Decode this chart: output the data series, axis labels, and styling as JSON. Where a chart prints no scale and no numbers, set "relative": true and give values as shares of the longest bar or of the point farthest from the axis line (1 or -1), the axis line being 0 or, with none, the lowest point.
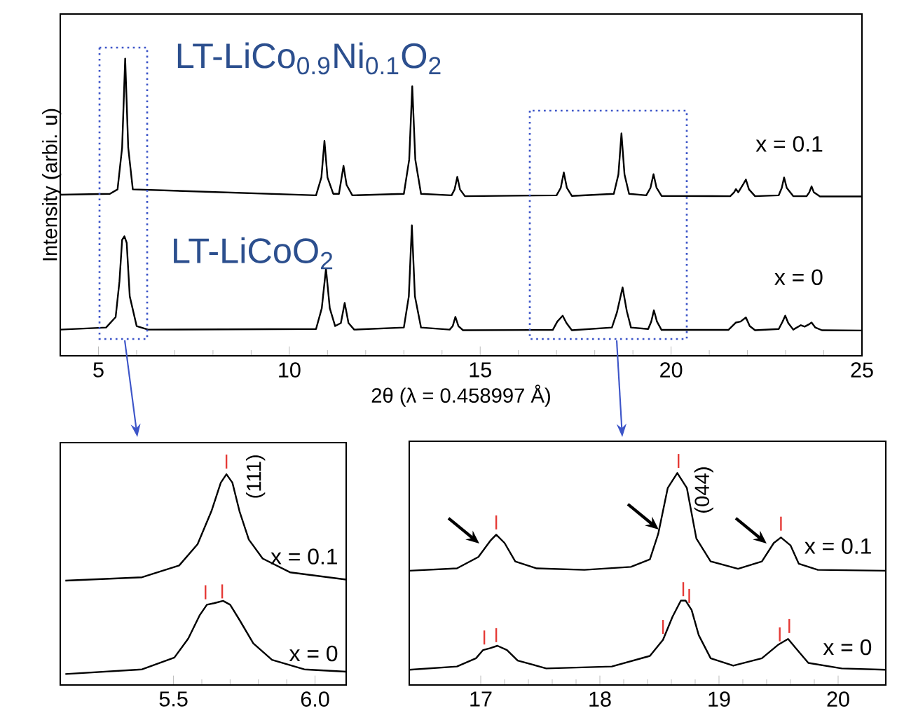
{
  "chart_data": [
    {
      "type": "line",
      "relative": true,
      "xlim": [
        4,
        25
      ],
      "xticks": [
        5,
        10,
        15,
        20,
        25
      ],
      "xlabel": "2θ (λ = 0.458997 Å)",
      "ylabel": "Intensity (arbi. u)",
      "tick_labels": "x",
      "annotations": [
        "LT-LiCo$_{0.9}$Ni$_{0.1}$O$_{2}$",
        "LT-LiCoO$_{2}$"
      ],
      "series": [
        {
          "name": "x = 0.1",
          "color": "#000000",
          "x": [
            4,
            5.3,
            5.5,
            5.62,
            5.7,
            5.78,
            5.9,
            10.7,
            10.84,
            10.92,
            11.0,
            11.15,
            11.3,
            11.42,
            11.5,
            11.65,
            13.0,
            13.14,
            13.22,
            13.3,
            13.45,
            14.25,
            14.33,
            14.4,
            14.47,
            14.6,
            17.0,
            17.11,
            17.19,
            17.27,
            17.4,
            18.5,
            18.62,
            18.7,
            18.78,
            18.9,
            19.35,
            19.46,
            19.54,
            19.62,
            19.75,
            21.55,
            21.65,
            21.7,
            21.76,
            21.88,
            21.96,
            22.04,
            22.2,
            22.82,
            22.9,
            22.96,
            23.03,
            23.2,
            23.55,
            23.62,
            23.68,
            23.74,
            23.9,
            25
          ],
          "values": [
            0.542,
            0.545,
            0.56,
            0.7,
            1.0,
            0.7,
            0.56,
            0.54,
            0.6,
            0.723,
            0.6,
            0.545,
            0.545,
            0.639,
            0.575,
            0.54,
            0.545,
            0.66,
            0.907,
            0.66,
            0.545,
            0.54,
            0.56,
            0.602,
            0.56,
            0.537,
            0.54,
            0.565,
            0.617,
            0.565,
            0.538,
            0.545,
            0.61,
            0.748,
            0.61,
            0.545,
            0.54,
            0.565,
            0.611,
            0.565,
            0.538,
            0.537,
            0.55,
            0.561,
            0.55,
            0.575,
            0.593,
            0.56,
            0.537,
            0.54,
            0.565,
            0.6,
            0.565,
            0.537,
            0.537,
            0.55,
            0.57,
            0.55,
            0.536,
            0.536
          ]
        },
        {
          "name": "x = 0",
          "color": "#000000",
          "x": [
            4,
            5.2,
            5.45,
            5.55,
            5.62,
            5.68,
            5.74,
            5.82,
            6.0,
            6.3,
            10.7,
            10.85,
            10.96,
            11.06,
            11.2,
            11.35,
            11.45,
            11.55,
            11.7,
            13.0,
            13.13,
            13.21,
            13.29,
            13.45,
            14.2,
            14.28,
            14.35,
            14.43,
            14.55,
            16.9,
            17.02,
            17.16,
            17.26,
            17.4,
            18.45,
            18.58,
            18.73,
            18.84,
            18.95,
            19.4,
            19.48,
            19.55,
            19.63,
            19.75,
            21.5,
            21.7,
            21.82,
            21.96,
            22.06,
            22.2,
            22.82,
            22.92,
            22.99,
            23.07,
            23.2,
            23.4,
            23.5,
            23.6,
            23.68,
            23.78,
            23.95,
            25
          ],
          "values": [
            0.088,
            0.095,
            0.13,
            0.25,
            0.39,
            0.402,
            0.38,
            0.2,
            0.1,
            0.088,
            0.09,
            0.16,
            0.293,
            0.16,
            0.1,
            0.11,
            0.178,
            0.11,
            0.088,
            0.095,
            0.2,
            0.439,
            0.2,
            0.095,
            0.088,
            0.1,
            0.131,
            0.1,
            0.086,
            0.087,
            0.115,
            0.135,
            0.11,
            0.086,
            0.095,
            0.145,
            0.23,
            0.15,
            0.095,
            0.09,
            0.115,
            0.153,
            0.115,
            0.087,
            0.087,
            0.112,
            0.115,
            0.129,
            0.1,
            0.086,
            0.09,
            0.115,
            0.135,
            0.11,
            0.088,
            0.103,
            0.098,
            0.105,
            0.112,
            0.095,
            0.086,
            0.085
          ]
        }
      ]
    },
    {
      "type": "line",
      "relative": true,
      "xlim": [
        5.1,
        6.11
      ],
      "xticks": [
        {
          "value": 5.5,
          "label": "5.5"
        },
        {
          "value": 6.0,
          "label": "6.0"
        }
      ],
      "tick_labels": "x",
      "annotations": [
        "(111)"
      ],
      "series": [
        {
          "name": "x = 0.1",
          "color": "#000000",
          "x": [
            5.118,
            5.389,
            5.52,
            5.585,
            5.634,
            5.667,
            5.687,
            5.708,
            5.733,
            5.766,
            5.815,
            5.913,
            6.11
          ],
          "values": [
            0.495,
            0.511,
            0.567,
            0.668,
            0.825,
            0.96,
            1.0,
            0.96,
            0.825,
            0.69,
            0.6,
            0.534,
            0.5
          ]
        },
        {
          "name": "x = 0",
          "color": "#000000",
          "x": [
            5.118,
            5.389,
            5.503,
            5.552,
            5.593,
            5.618,
            5.643,
            5.675,
            5.7,
            5.733,
            5.782,
            5.848,
            5.962,
            6.11
          ],
          "values": [
            0.052,
            0.074,
            0.13,
            0.22,
            0.332,
            0.381,
            0.388,
            0.399,
            0.381,
            0.309,
            0.197,
            0.119,
            0.074,
            0.063
          ]
        }
      ]
    },
    {
      "type": "line",
      "relative": true,
      "xlim": [
        16.4,
        20.4
      ],
      "xticks": [
        17,
        18,
        19,
        20
      ],
      "tick_labels": "x",
      "annotations": [
        "(044)"
      ],
      "series": [
        {
          "name": "x = 0.1",
          "color": "#000000",
          "x": [
            16.4,
            16.8,
            16.98,
            17.08,
            17.13,
            17.2,
            17.29,
            17.47,
            17.87,
            18.26,
            18.42,
            18.49,
            18.57,
            18.65,
            18.73,
            18.81,
            18.93,
            19.16,
            19.36,
            19.46,
            19.52,
            19.6,
            19.67,
            19.83,
            20.4
          ],
          "values": [
            0.539,
            0.55,
            0.604,
            0.68,
            0.709,
            0.67,
            0.583,
            0.55,
            0.543,
            0.557,
            0.593,
            0.713,
            0.93,
            1.0,
            0.93,
            0.691,
            0.583,
            0.548,
            0.583,
            0.67,
            0.696,
            0.659,
            0.572,
            0.543,
            0.539
          ]
        },
        {
          "name": "x = 0",
          "color": "#000000",
          "x": [
            16.4,
            16.8,
            16.96,
            17.02,
            17.08,
            17.14,
            17.22,
            17.31,
            17.55,
            18.1,
            18.42,
            18.53,
            18.61,
            18.68,
            18.72,
            18.77,
            18.83,
            18.93,
            19.12,
            19.36,
            19.5,
            19.58,
            19.65,
            19.75,
            20.03,
            20.4
          ],
          "values": [
            0.072,
            0.087,
            0.126,
            0.165,
            0.174,
            0.185,
            0.165,
            0.115,
            0.078,
            0.087,
            0.137,
            0.213,
            0.322,
            0.398,
            0.398,
            0.354,
            0.235,
            0.126,
            0.091,
            0.126,
            0.191,
            0.217,
            0.17,
            0.104,
            0.078,
            0.072
          ]
        }
      ]
    }
  ]
}
